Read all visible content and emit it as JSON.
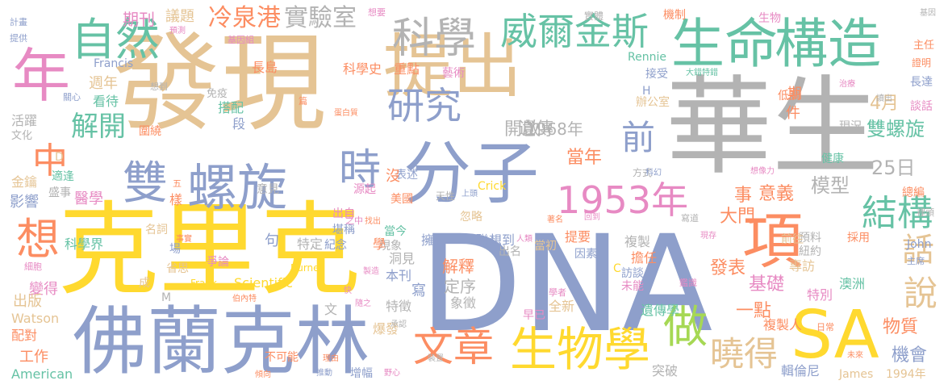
{
  "words": [
    {
      "text": "DNA",
      "color": "#8e9fcb"
    },
    {
      "text": "華生",
      "color": "#b3b3b3"
    },
    {
      "text": "發現",
      "color": "#e5c494"
    },
    {
      "text": "克里克",
      "color": "#ffd92f"
    },
    {
      "text": "佛蘭克林",
      "color": "#8e9fcb"
    },
    {
      "text": "提出",
      "color": "#e5c494"
    },
    {
      "text": "分子",
      "color": "#8e9fcb"
    },
    {
      "text": "構造",
      "color": "#66c2a5"
    },
    {
      "text": "生命",
      "color": "#66c2a5"
    },
    {
      "text": "SA",
      "color": "#ffd92f"
    },
    {
      "text": "項",
      "color": "#fc8d62"
    },
    {
      "text": "年",
      "color": "#e78ac3"
    },
    {
      "text": "自然",
      "color": "#66c2a5"
    },
    {
      "text": "生物學",
      "color": "#ffd92f"
    },
    {
      "text": "科學",
      "color": "#b3b3b3"
    },
    {
      "text": "威爾金斯",
      "color": "#66c2a5"
    },
    {
      "text": "雙",
      "color": "#8e9fcb"
    },
    {
      "text": "螺旋",
      "color": "#8e9fcb"
    },
    {
      "text": "1953年",
      "color": "#e78ac3"
    },
    {
      "text": "文章",
      "color": "#fc8d62"
    },
    {
      "text": "研究",
      "color": "#8e9fcb"
    },
    {
      "text": "時",
      "color": "#8e9fcb"
    },
    {
      "text": "做",
      "color": "#a6d854"
    },
    {
      "text": "想",
      "color": "#fc8d62"
    },
    {
      "text": "中",
      "color": "#fc8d62"
    },
    {
      "text": "結構",
      "color": "#66c2a5"
    },
    {
      "text": "說",
      "color": "#e5c494"
    },
    {
      "text": "話",
      "color": "#e5c494"
    },
    {
      "text": "曉得",
      "color": "#e5c494"
    },
    {
      "text": "前",
      "color": "#8e9fcb"
    },
    {
      "text": "解開",
      "color": "#66c2a5"
    },
    {
      "text": "冷泉港",
      "color": "#fc8d62"
    },
    {
      "text": "實驗室",
      "color": "#b3b3b3"
    },
    {
      "text": "雙螺旋",
      "color": "#66c2a5"
    },
    {
      "text": "4月",
      "color": "#e5c494"
    },
    {
      "text": "25日",
      "color": "#b3b3b3"
    },
    {
      "text": "模型",
      "color": "#b3b3b3"
    },
    {
      "text": "遺傳",
      "color": "#b3b3b3"
    },
    {
      "text": "1968年",
      "color": "#b3b3b3"
    },
    {
      "text": "開啟",
      "color": "#b3b3b3"
    },
    {
      "text": "當年",
      "color": "#fc8d62"
    },
    {
      "text": "意義",
      "color": "#fc8d62"
    },
    {
      "text": "事",
      "color": "#fc8d62"
    },
    {
      "text": "大門",
      "color": "#fc8d62"
    },
    {
      "text": "基礎",
      "color": "#e78ac3"
    },
    {
      "text": "發表",
      "color": "#fc8d62"
    },
    {
      "text": "一點",
      "color": "#fc8d62"
    },
    {
      "text": "物質",
      "color": "#fc8d62"
    },
    {
      "text": "機會",
      "color": "#8e9fcb"
    },
    {
      "text": "期刊",
      "color": "#e78ac3"
    },
    {
      "text": "議題",
      "color": "#e5c494"
    },
    {
      "text": "科學史",
      "color": "#fc8d62"
    },
    {
      "text": "重點",
      "color": "#fc8d62"
    },
    {
      "text": "藝術",
      "color": "#e78ac3"
    },
    {
      "text": "長島",
      "color": "#fc8d62"
    },
    {
      "text": "週年",
      "color": "#e5c494"
    },
    {
      "text": "看待",
      "color": "#66c2a5"
    },
    {
      "text": "搭配",
      "color": "#66c2a5"
    },
    {
      "text": "段",
      "color": "#8e9fcb"
    },
    {
      "text": "醫學",
      "color": "#e78ac3"
    },
    {
      "text": "影響",
      "color": "#8e9fcb"
    },
    {
      "text": "金鑰",
      "color": "#e5c494"
    },
    {
      "text": "盛事",
      "color": "#b3b3b3"
    },
    {
      "text": "活躍",
      "color": "#b3b3b3"
    },
    {
      "text": "科學界",
      "color": "#66c2a5"
    },
    {
      "text": "變得",
      "color": "#e78ac3"
    },
    {
      "text": "出版",
      "color": "#e5c494"
    },
    {
      "text": "Watson",
      "color": "#e5c494"
    },
    {
      "text": "配對",
      "color": "#fc8d62"
    },
    {
      "text": "工作",
      "color": "#fc8d62"
    },
    {
      "text": "American",
      "color": "#66c2a5"
    },
    {
      "text": "Scientific",
      "color": "#ffd92f"
    },
    {
      "text": "Francis",
      "color": "#8e9fcb"
    },
    {
      "text": "Crick",
      "color": "#ffd92f"
    },
    {
      "text": "James",
      "color": "#e5c494"
    },
    {
      "text": "1994年",
      "color": "#e5c494"
    },
    {
      "text": "John",
      "color": "#8e9fcb"
    },
    {
      "text": "Rennie",
      "color": "#66c2a5"
    },
    {
      "text": "Burnet",
      "color": "#ffd92f"
    },
    {
      "text": "Frank",
      "color": "#ffd92f"
    },
    {
      "text": "特定",
      "color": "#b3b3b3"
    },
    {
      "text": "解釋",
      "color": "#fc8d62"
    },
    {
      "text": "定序",
      "color": "#b3b3b3"
    },
    {
      "text": "特徵",
      "color": "#b3b3b3"
    },
    {
      "text": "象徵",
      "color": "#b3b3b3"
    },
    {
      "text": "爆發",
      "color": "#e5c494"
    },
    {
      "text": "早已",
      "color": "#e78ac3"
    },
    {
      "text": "全新",
      "color": "#e5c494"
    },
    {
      "text": "遺傳學",
      "color": "#66c2a5"
    },
    {
      "text": "複製人",
      "color": "#fc8d62"
    },
    {
      "text": "突破",
      "color": "#b3b3b3"
    },
    {
      "text": "輯倫尼",
      "color": "#8e9fcb"
    },
    {
      "text": "複製",
      "color": "#b3b3b3"
    },
    {
      "text": "擔任",
      "color": "#fc8d62"
    },
    {
      "text": "提要",
      "color": "#fc8d62"
    },
    {
      "text": "因素",
      "color": "#8e9fcb"
    },
    {
      "text": "訪談",
      "color": "#8e9fcb"
    },
    {
      "text": "未能",
      "color": "#e78ac3"
    },
    {
      "text": "專訪",
      "color": "#e5c494"
    },
    {
      "text": "特別",
      "color": "#e78ac3"
    },
    {
      "text": "澳洲",
      "color": "#66c2a5"
    },
    {
      "text": "紐約",
      "color": "#b3b3b3"
    },
    {
      "text": "預料",
      "color": "#b3b3b3"
    },
    {
      "text": "前往",
      "color": "#e5c494"
    },
    {
      "text": "採用",
      "color": "#fc8d62"
    },
    {
      "text": "總編",
      "color": "#fc8d62"
    },
    {
      "text": "健康",
      "color": "#66c2a5"
    },
    {
      "text": "現況",
      "color": "#b3b3b3"
    },
    {
      "text": "談話",
      "color": "#e78ac3"
    },
    {
      "text": "長達",
      "color": "#8e9fcb"
    },
    {
      "text": "證明",
      "color": "#fc8d62"
    },
    {
      "text": "主任",
      "color": "#fc8d62"
    },
    {
      "text": "接受",
      "color": "#8e9fcb"
    },
    {
      "text": "低調",
      "color": "#fc8d62"
    },
    {
      "text": "辦公室",
      "color": "#e5c494"
    },
    {
      "text": "機制",
      "color": "#fc8d62"
    },
    {
      "text": "實體",
      "color": "#b3b3b3"
    },
    {
      "text": "想要",
      "color": "#e78ac3"
    },
    {
      "text": "生物",
      "color": "#e78ac3"
    },
    {
      "text": "方式",
      "color": "#b3b3b3"
    },
    {
      "text": "表述",
      "color": "#8e9fcb"
    },
    {
      "text": "源起",
      "color": "#e78ac3"
    },
    {
      "text": "美國",
      "color": "#fc8d62"
    },
    {
      "text": "天性",
      "color": "#b3b3b3"
    },
    {
      "text": "沒",
      "color": "#fc8d62"
    },
    {
      "text": "出自",
      "color": "#e78ac3"
    },
    {
      "text": "堪稱",
      "color": "#8e9fcb"
    },
    {
      "text": "紀念",
      "color": "#8e9fcb"
    },
    {
      "text": "當今",
      "color": "#66c2a5"
    },
    {
      "text": "忽略",
      "color": "#e5c494"
    },
    {
      "text": "擁有",
      "color": "#8e9fcb"
    },
    {
      "text": "聯想到",
      "color": "#8e9fcb"
    },
    {
      "text": "現象",
      "color": "#b3b3b3"
    },
    {
      "text": "當初",
      "color": "#e5c494"
    },
    {
      "text": "出名",
      "color": "#b3b3b3"
    },
    {
      "text": "洞見",
      "color": "#b3b3b3"
    },
    {
      "text": "本刊",
      "color": "#8e9fcb"
    },
    {
      "text": "寫",
      "color": "#8e9fcb"
    },
    {
      "text": "句",
      "color": "#8e9fcb"
    },
    {
      "text": "爭論",
      "color": "#e78ac3"
    },
    {
      "text": "省思",
      "color": "#e5c494"
    },
    {
      "text": "場",
      "color": "#8e9fcb"
    },
    {
      "text": "名詞",
      "color": "#e5c494"
    },
    {
      "text": "意見",
      "color": "#b3b3b3"
    },
    {
      "text": "適逢",
      "color": "#66c2a5"
    },
    {
      "text": "圍繞",
      "color": "#fc8d62"
    },
    {
      "text": "文化",
      "color": "#b3b3b3"
    },
    {
      "text": "計畫",
      "color": "#8e9fcb"
    },
    {
      "text": "提供",
      "color": "#8e9fcb"
    },
    {
      "text": "預測",
      "color": "#e78ac3"
    },
    {
      "text": "基因組",
      "color": "#e78ac3"
    },
    {
      "text": "免疫",
      "color": "#b3b3b3"
    },
    {
      "text": "想到",
      "color": "#b3b3b3"
    },
    {
      "text": "關心",
      "color": "#8e9fcb"
    },
    {
      "text": "篇",
      "color": "#fc8d62"
    },
    {
      "text": "大錯特錯",
      "color": "#66c2a5"
    },
    {
      "text": "治療",
      "color": "#e78ac3"
    },
    {
      "text": "讀出",
      "color": "#b3b3b3"
    },
    {
      "text": "基因",
      "color": "#b3b3b3"
    },
    {
      "text": "蛋白質",
      "color": "#fc8d62"
    },
    {
      "text": "科幻",
      "color": "#8e9fcb"
    },
    {
      "text": "想像力",
      "color": "#e78ac3"
    },
    {
      "text": "上頭",
      "color": "#8e9fcb"
    },
    {
      "text": "之中",
      "color": "#e78ac3"
    },
    {
      "text": "找出",
      "color": "#fc8d62"
    },
    {
      "text": "人類",
      "color": "#e78ac3"
    },
    {
      "text": "著名",
      "color": "#fc8d62"
    },
    {
      "text": "回到",
      "color": "#e78ac3"
    },
    {
      "text": "寫道",
      "color": "#b3b3b3"
    },
    {
      "text": "現存",
      "color": "#e78ac3"
    },
    {
      "text": "裡頭",
      "color": "#b3b3b3"
    },
    {
      "text": "主席",
      "color": "#8e9fcb"
    },
    {
      "text": "學者",
      "color": "#e78ac3"
    },
    {
      "text": "鑑識",
      "color": "#e78ac3"
    },
    {
      "text": "日常",
      "color": "#fc8d62"
    },
    {
      "text": "未來",
      "color": "#fc8d62"
    },
    {
      "text": "事實",
      "color": "#fc8d62"
    },
    {
      "text": "製造",
      "color": "#e78ac3"
    },
    {
      "text": "不可能",
      "color": "#fc8d62"
    },
    {
      "text": "伯內特",
      "color": "#fc8d62"
    },
    {
      "text": "隨之",
      "color": "#e78ac3"
    },
    {
      "text": "理由",
      "color": "#fc8d62"
    },
    {
      "text": "裝置",
      "color": "#b3b3b3"
    },
    {
      "text": "承認",
      "color": "#b3b3b3"
    },
    {
      "text": "增幅",
      "color": "#8e9fcb"
    },
    {
      "text": "推動",
      "color": "#8e9fcb"
    },
    {
      "text": "野心",
      "color": "#e78ac3"
    },
    {
      "text": "傾向",
      "color": "#fc8d62"
    },
    {
      "text": "快",
      "color": "#e78ac3"
    },
    {
      "text": "成",
      "color": "#e5c494"
    },
    {
      "text": "文",
      "color": "#b3b3b3"
    },
    {
      "text": "學",
      "color": "#fc8d62"
    },
    {
      "text": "細胞",
      "color": "#e78ac3"
    },
    {
      "text": "樣",
      "color": "#fc8d62"
    },
    {
      "text": "五",
      "color": "#fc8d62"
    },
    {
      "text": "期",
      "color": "#fc8d62"
    },
    {
      "text": "件",
      "color": "#fc8d62"
    },
    {
      "text": "D",
      "color": "#e5c494"
    },
    {
      "text": "M",
      "color": "#b3b3b3"
    },
    {
      "text": "H",
      "color": "#8e9fcb"
    },
    {
      "text": "C",
      "color": "#ffd92f"
    }
  ]
}
